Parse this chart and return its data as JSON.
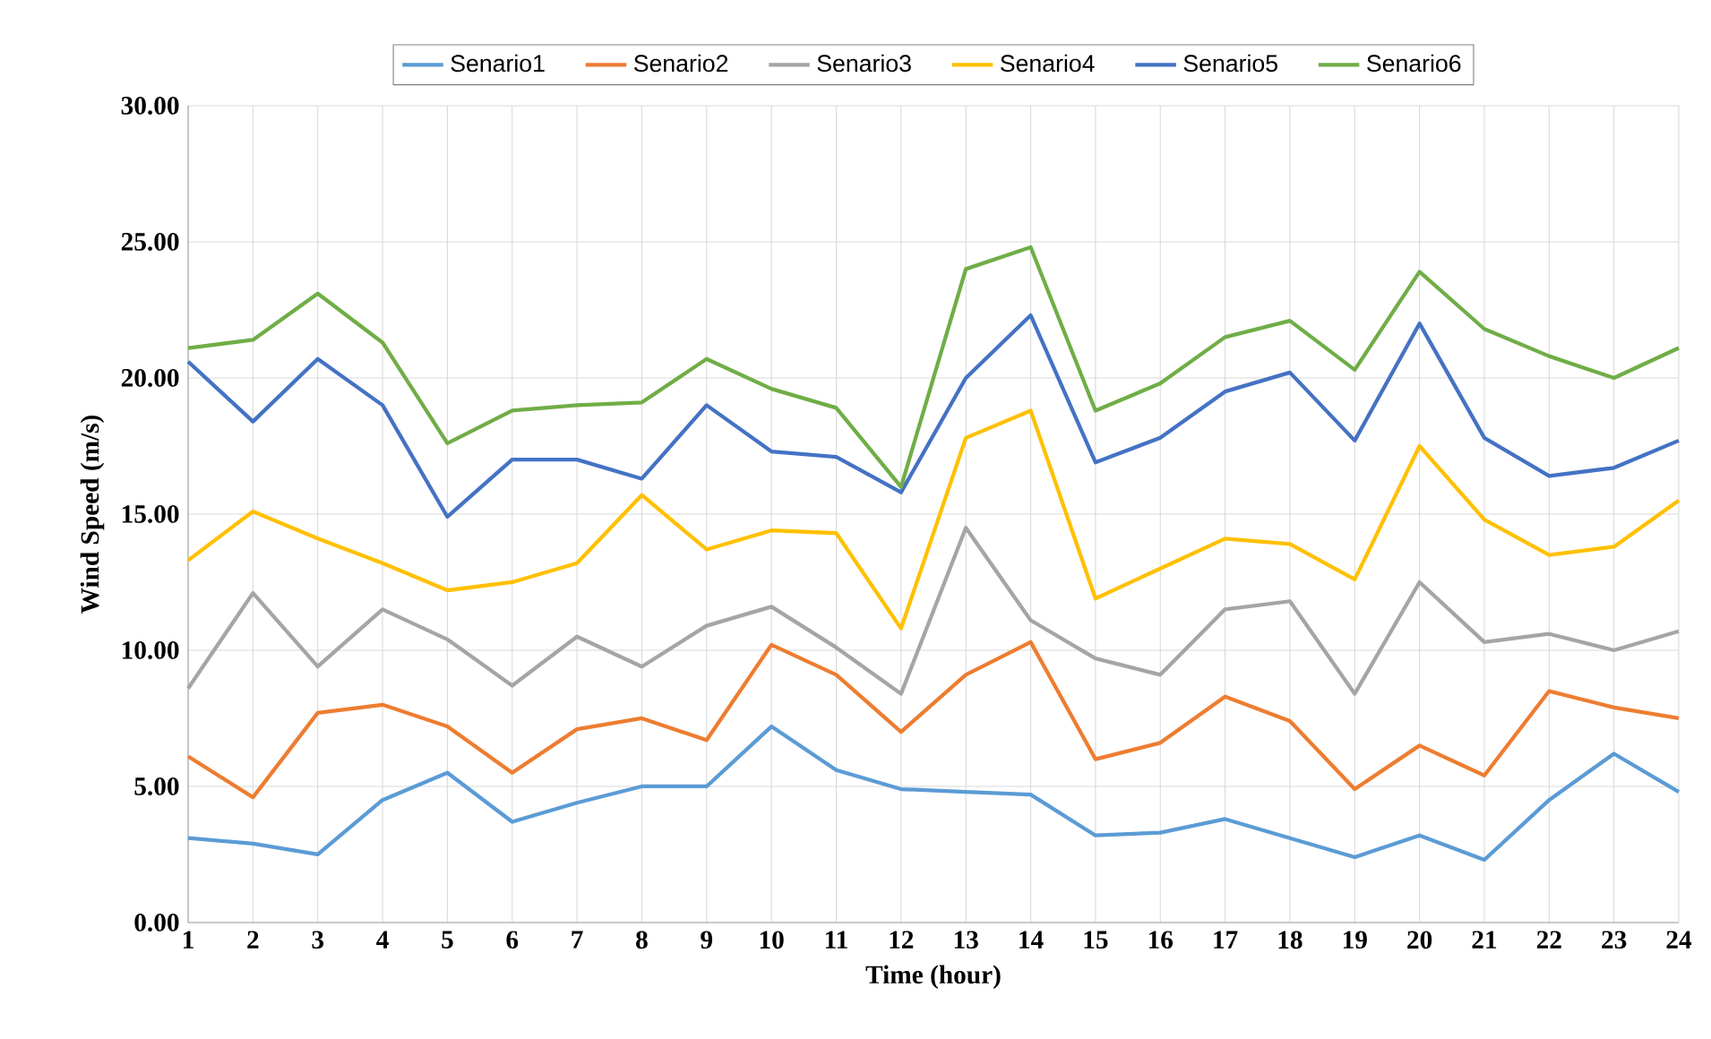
{
  "chart_data": {
    "type": "line",
    "xlabel": "Time (hour)",
    "ylabel": "Wind Speed (m/s)",
    "categories": [
      "1",
      "2",
      "3",
      "4",
      "5",
      "6",
      "7",
      "8",
      "9",
      "10",
      "11",
      "12",
      "13",
      "14",
      "15",
      "16",
      "17",
      "18",
      "19",
      "20",
      "21",
      "22",
      "23",
      "24"
    ],
    "series": [
      {
        "name": "Senario1",
        "color": "#5b9bd5",
        "values": [
          3.1,
          2.9,
          2.5,
          4.5,
          5.5,
          3.7,
          4.4,
          5.0,
          5.0,
          7.2,
          5.6,
          4.9,
          4.8,
          4.7,
          3.2,
          3.3,
          3.8,
          3.1,
          2.4,
          3.2,
          2.3,
          4.5,
          6.2,
          4.8
        ]
      },
      {
        "name": "Senario2",
        "color": "#ed7d31",
        "values": [
          6.1,
          4.6,
          7.7,
          8.0,
          7.2,
          5.5,
          7.1,
          7.5,
          6.7,
          10.2,
          9.1,
          7.0,
          9.1,
          10.3,
          6.0,
          6.6,
          8.3,
          7.4,
          4.9,
          6.5,
          5.4,
          8.5,
          7.9,
          7.5
        ]
      },
      {
        "name": "Senario3",
        "color": "#a5a5a5",
        "values": [
          8.6,
          12.1,
          9.4,
          11.5,
          10.4,
          8.7,
          10.5,
          9.4,
          10.9,
          11.6,
          10.1,
          8.4,
          14.5,
          11.1,
          9.7,
          9.1,
          11.5,
          11.8,
          8.4,
          12.5,
          10.3,
          10.6,
          10.0,
          10.7
        ]
      },
      {
        "name": "Senario4",
        "color": "#ffc000",
        "values": [
          13.3,
          15.1,
          14.1,
          13.2,
          12.2,
          12.5,
          13.2,
          15.7,
          13.7,
          14.4,
          14.3,
          10.8,
          17.8,
          18.8,
          11.9,
          13.0,
          14.1,
          13.9,
          12.6,
          17.5,
          14.8,
          13.5,
          13.8,
          15.5
        ]
      },
      {
        "name": "Senario5",
        "color": "#4472c4",
        "values": [
          20.6,
          18.4,
          20.7,
          19.0,
          14.9,
          17.0,
          17.0,
          16.3,
          19.0,
          17.3,
          17.1,
          15.8,
          20.0,
          22.3,
          16.9,
          17.8,
          19.5,
          20.2,
          17.7,
          22.0,
          17.8,
          16.4,
          16.7,
          17.7
        ]
      },
      {
        "name": "Senario6",
        "color": "#70ad47",
        "values": [
          21.1,
          21.4,
          23.1,
          21.3,
          17.6,
          18.8,
          19.0,
          19.1,
          20.7,
          19.6,
          18.9,
          16.0,
          24.0,
          24.8,
          18.8,
          19.8,
          21.5,
          22.1,
          20.3,
          23.9,
          21.8,
          20.8,
          20.0,
          21.1
        ]
      }
    ],
    "ylim": [
      0,
      30
    ],
    "yticks": [
      {
        "value": 0,
        "label": "0.00"
      },
      {
        "value": 5,
        "label": "5.00"
      },
      {
        "value": 10,
        "label": "10.00"
      },
      {
        "value": 15,
        "label": "15.00"
      },
      {
        "value": 20,
        "label": "20.00"
      },
      {
        "value": 25,
        "label": "25.00"
      },
      {
        "value": 30,
        "label": "30.00"
      }
    ],
    "grid": true,
    "legend": "top",
    "marker": "none",
    "line_style": "solid"
  }
}
